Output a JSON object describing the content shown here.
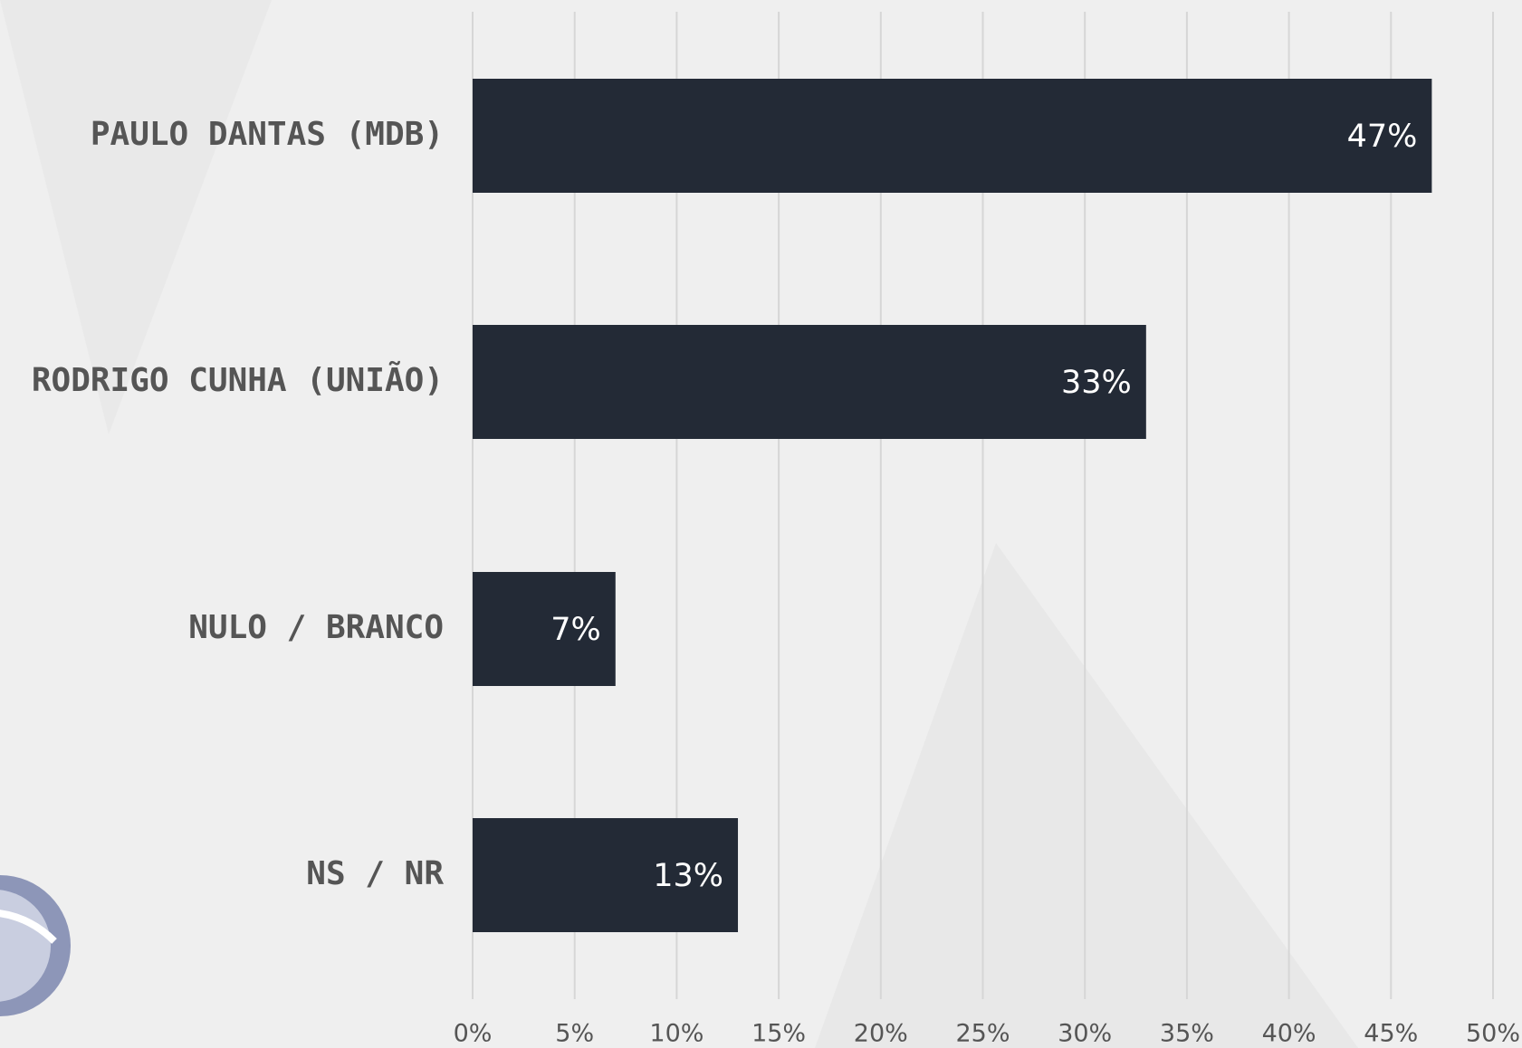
{
  "chart_data": {
    "type": "bar",
    "orientation": "horizontal",
    "categories": [
      "PAULO DANTAS (MDB)",
      "RODRIGO CUNHA (UNIÃO)",
      "NULO / BRANCO",
      "NS / NR"
    ],
    "values": [
      47,
      33,
      7,
      13
    ],
    "value_labels": [
      "47%",
      "33%",
      "7%",
      "13%"
    ],
    "color": "#232a36",
    "xlim": [
      0,
      50
    ],
    "xticks": [
      {
        "value": 0,
        "label": "0%"
      },
      {
        "value": 5,
        "label": "5%"
      },
      {
        "value": 10,
        "label": "10%"
      },
      {
        "value": 15,
        "label": "15%"
      },
      {
        "value": 20,
        "label": "20%"
      },
      {
        "value": 25,
        "label": "25%"
      },
      {
        "value": 30,
        "label": "30%"
      },
      {
        "value": 35,
        "label": "35%"
      },
      {
        "value": 40,
        "label": "40%"
      },
      {
        "value": 45,
        "label": "45%"
      },
      {
        "value": 50,
        "label": "50%"
      }
    ],
    "grid": true
  }
}
